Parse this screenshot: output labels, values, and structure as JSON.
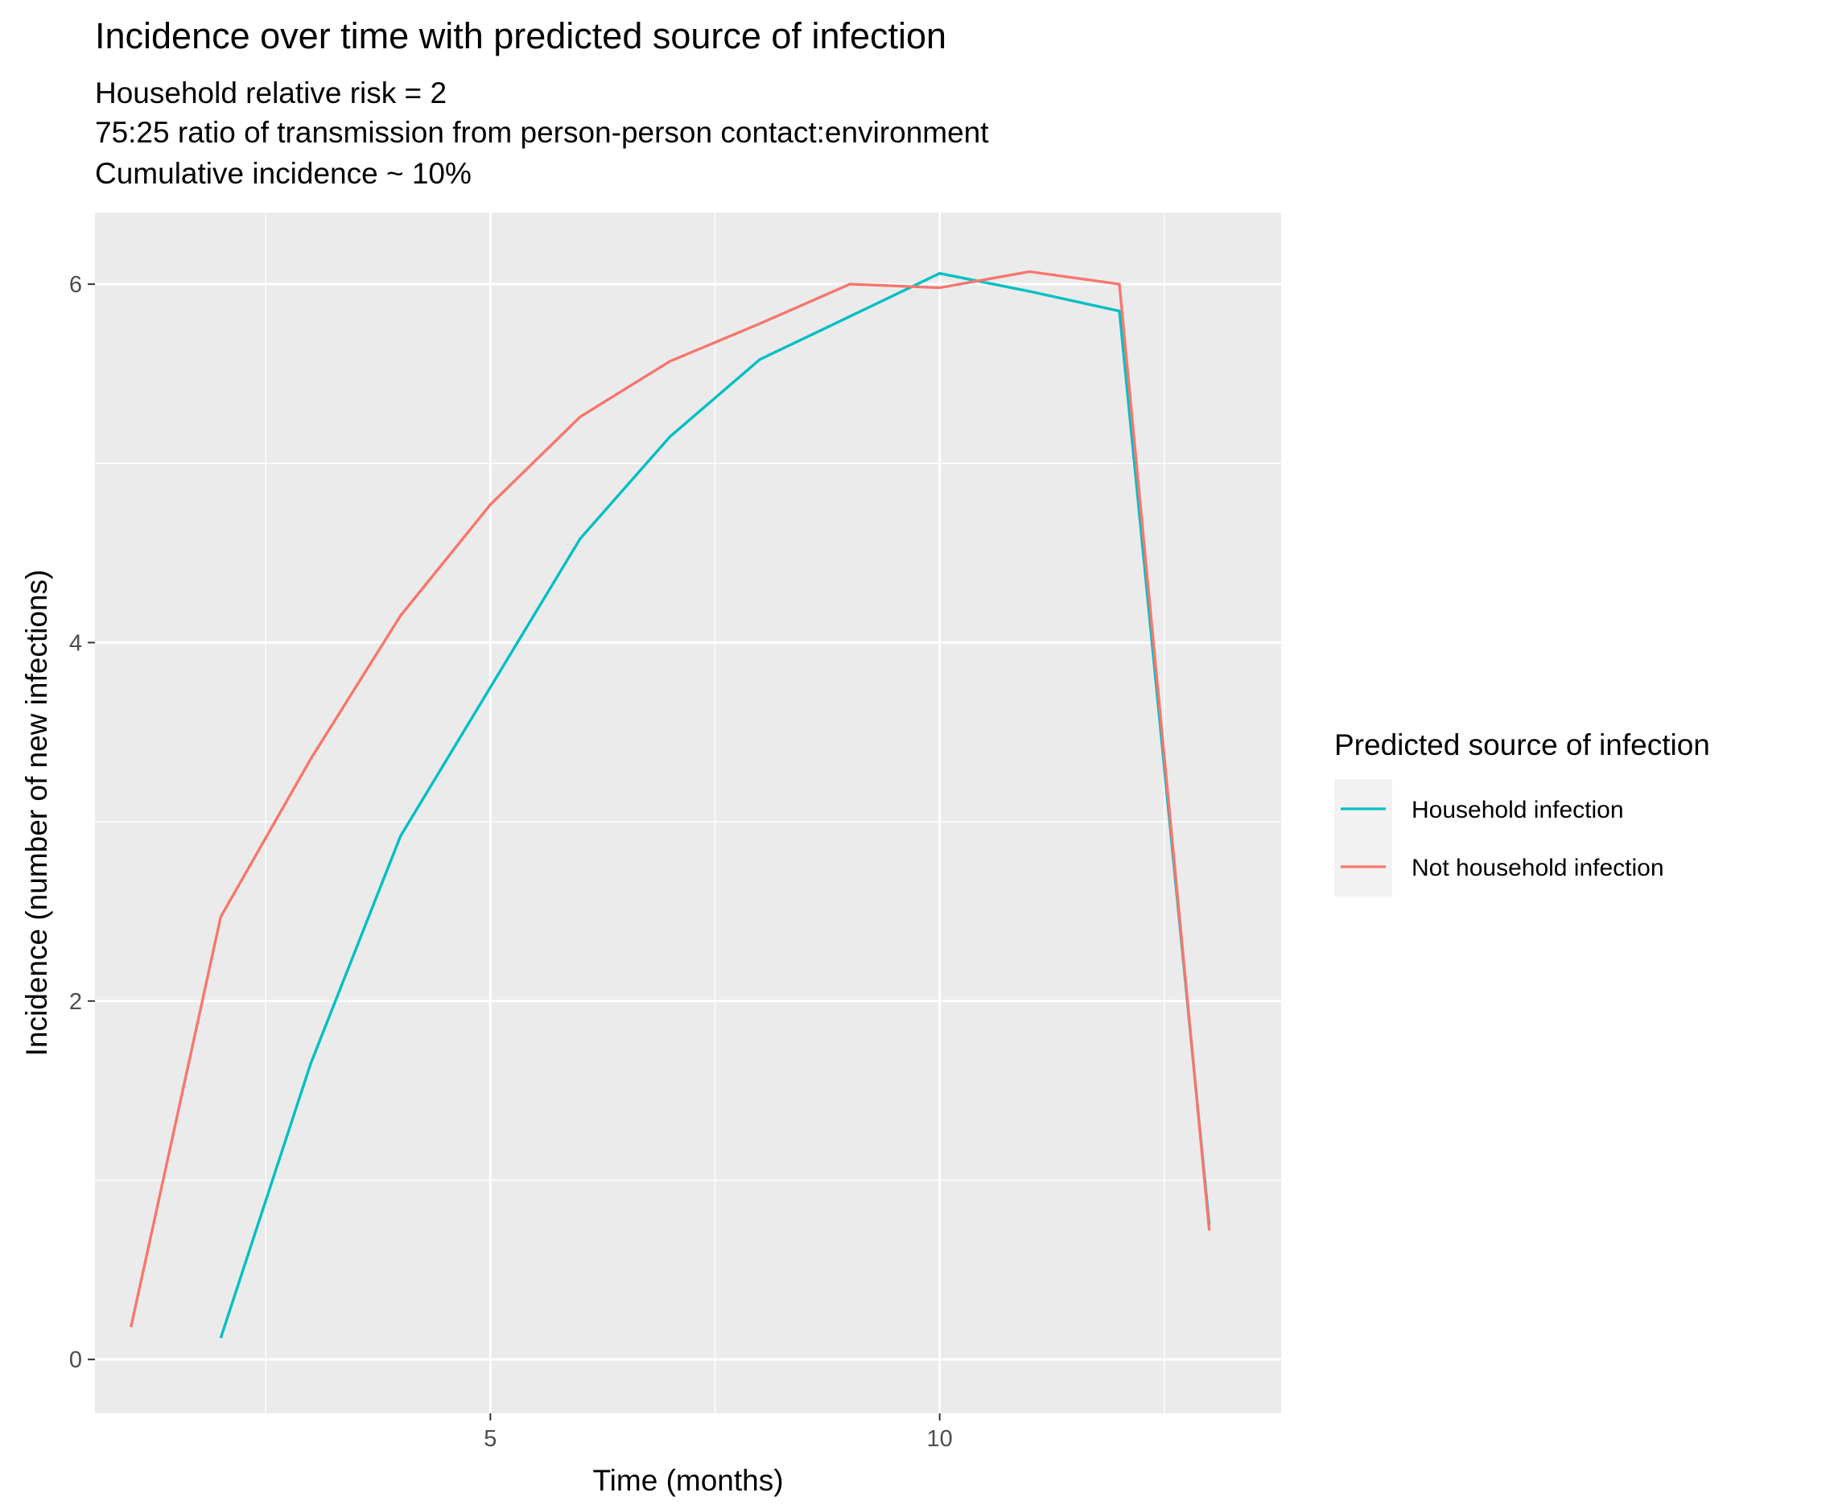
{
  "chart_data": {
    "type": "line",
    "title": "Incidence over time with predicted source of infection",
    "subtitle_lines": [
      "Household relative risk = 2",
      "75:25 ratio of transmission from person-person contact:environment",
      "Cumulative incidence ~ 10%"
    ],
    "xlabel": "Time (months)",
    "ylabel": "Incidence (number of new infections)",
    "xlim": [
      0.6,
      13.8
    ],
    "ylim": [
      -0.3,
      6.4
    ],
    "x_ticks": [
      5,
      10
    ],
    "y_ticks": [
      0,
      2,
      4,
      6
    ],
    "x_minor_ticks": [
      2.5,
      7.5,
      12.5
    ],
    "y_minor_ticks": [
      1,
      3,
      5
    ],
    "grid": true,
    "legend": {
      "title": "Predicted source of infection",
      "position": "right",
      "entries": [
        "Household infection",
        "Not household infection"
      ]
    },
    "series": [
      {
        "name": "Household infection",
        "color": "#00BFC4",
        "x": [
          2,
          3,
          4,
          5,
          6,
          7,
          8,
          9,
          10,
          11,
          12,
          13
        ],
        "y": [
          0.12,
          1.65,
          2.92,
          3.75,
          4.58,
          5.15,
          5.58,
          5.82,
          6.06,
          5.96,
          5.85,
          0.75
        ]
      },
      {
        "name": "Not household infection",
        "color": "#F8766D",
        "x": [
          1,
          2,
          3,
          4,
          5,
          6,
          7,
          8,
          9,
          10,
          11,
          12,
          13
        ],
        "y": [
          0.18,
          2.47,
          3.35,
          4.15,
          4.77,
          5.26,
          5.57,
          5.78,
          6.0,
          5.98,
          6.07,
          6.0,
          0.72
        ]
      }
    ]
  }
}
